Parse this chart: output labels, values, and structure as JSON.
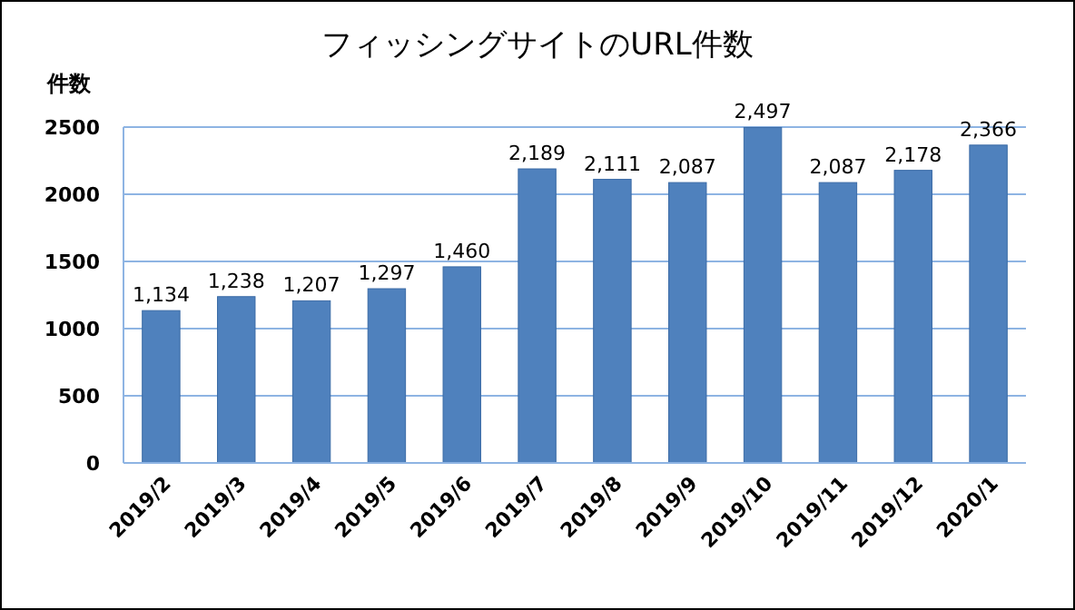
{
  "chart_data": {
    "type": "bar",
    "title": "フィッシングサイトのURL件数",
    "ylabel": "件数",
    "categories": [
      "2019/2",
      "2019/3",
      "2019/4",
      "2019/5",
      "2019/6",
      "2019/7",
      "2019/8",
      "2019/9",
      "2019/10",
      "2019/11",
      "2019/12",
      "2020/1"
    ],
    "values": [
      1134,
      1238,
      1207,
      1297,
      1460,
      2189,
      2111,
      2087,
      2497,
      2087,
      2178,
      2366
    ],
    "color": "#4f81bd",
    "ylim": [
      0,
      2500
    ],
    "yticks": [
      0,
      500,
      1000,
      1500,
      2000,
      2500
    ],
    "value_labels": [
      "1,134",
      "1,238",
      "1,207",
      "1,297",
      "1,460",
      "2,189",
      "2,111",
      "2,087",
      "2,497",
      "2,087",
      "2,178",
      "2,366"
    ],
    "grid": "y"
  }
}
